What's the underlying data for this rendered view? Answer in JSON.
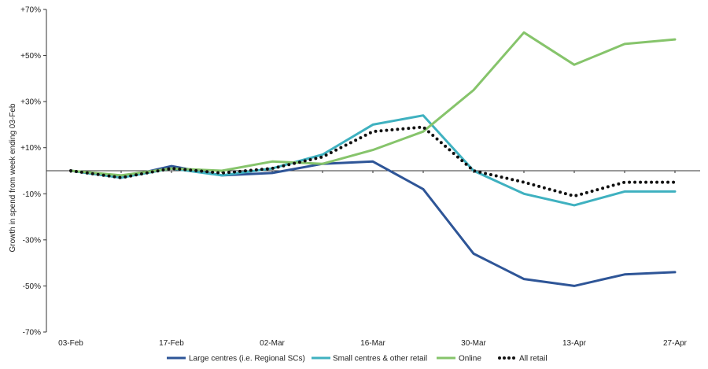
{
  "chart_data": {
    "type": "line",
    "title": "",
    "xlabel": "",
    "ylabel": "Growth in spend from week ending 03-Feb",
    "ylim": [
      -70,
      70
    ],
    "y_ticks": [
      "+70%",
      "+50%",
      "+30%",
      "+10%",
      "-10%",
      "-30%",
      "-50%",
      "-70%"
    ],
    "y_tick_values": [
      70,
      50,
      30,
      10,
      -10,
      -30,
      -50,
      -70
    ],
    "x": [
      "03-Feb",
      "10-Feb",
      "17-Feb",
      "24-Feb",
      "02-Mar",
      "09-Mar",
      "16-Mar",
      "23-Mar",
      "30-Mar",
      "06-Apr",
      "13-Apr",
      "20-Apr",
      "27-Apr"
    ],
    "x_tick_labels": [
      "03-Feb",
      "17-Feb",
      "02-Mar",
      "16-Mar",
      "30-Mar",
      "13-Apr",
      "27-Apr"
    ],
    "series": [
      {
        "name": "Large centres (i.e. Regional SCs)",
        "color": "#2e5597",
        "style": "solid",
        "values": [
          0,
          -3,
          2,
          -2,
          -1,
          3,
          4,
          -8,
          -36,
          -47,
          -50,
          -45,
          -44
        ]
      },
      {
        "name": "Small centres & other retail",
        "color": "#3fb1c0",
        "style": "solid",
        "values": [
          0,
          -3,
          1,
          -2,
          1,
          7,
          20,
          24,
          0,
          -10,
          -15,
          -9,
          -9
        ]
      },
      {
        "name": "Online",
        "color": "#86c46b",
        "style": "solid",
        "values": [
          0,
          -2,
          1,
          0,
          4,
          3,
          9,
          17,
          35,
          60,
          46,
          55,
          57
        ]
      },
      {
        "name": "All retail",
        "color": "#111111",
        "style": "dotted",
        "values": [
          0,
          -3,
          1,
          -1,
          1,
          6,
          17,
          19,
          0,
          -5,
          -11,
          -5,
          -5
        ]
      }
    ],
    "legend_position": "bottom",
    "grid": false
  }
}
